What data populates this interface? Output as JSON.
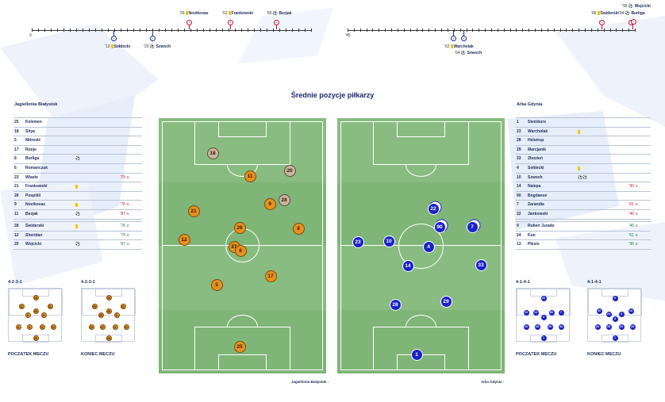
{
  "title": "Średnie pozycje piłkarzy",
  "timeline_home": {
    "start": "0",
    "top_events": [
      {
        "min": "'25",
        "name": "Novikovas",
        "icon": "yellow-card"
      },
      {
        "min": "'52",
        "name": "Frankowski",
        "icon": "yellow-card"
      },
      {
        "min": "'60",
        "name": "Bezjak",
        "icon": "ball"
      }
    ],
    "bottom_events": [
      {
        "min": "'13",
        "name": "Sołdecki",
        "icon": "yellow-card"
      },
      {
        "min": "'20",
        "name": "Szwoch",
        "icon": "ball"
      }
    ]
  },
  "timeline_away": {
    "start": "'45",
    "top_events": [
      {
        "min": "'86",
        "name": "Świderski",
        "icon": "yellow-card"
      },
      {
        "min": "'94",
        "name": "Burliga",
        "icon": "ball"
      },
      {
        "min": "'95",
        "name": "Wojcicki",
        "icon": "ball"
      }
    ],
    "bottom_events": [
      {
        "min": "'62",
        "name": "Warcholak",
        "icon": "yellow-card"
      },
      {
        "min": "'64",
        "name": "Szwoch",
        "icon": "ball"
      }
    ]
  },
  "home": {
    "name": "Jagiellonia Białystok",
    "players": [
      {
        "num": "25",
        "name": "Kelemen",
        "sym": "",
        "ex": ""
      },
      {
        "num": "18",
        "name": "Sitya",
        "sym": "",
        "ex": ""
      },
      {
        "num": "5",
        "name": "Mitrović",
        "sym": "",
        "ex": ""
      },
      {
        "num": "17",
        "name": "Runje",
        "sym": "",
        "ex": ""
      },
      {
        "num": "8",
        "name": "Burliga",
        "sym": "⚽",
        "ex": ""
      },
      {
        "num": "6",
        "name": "Romanczuk",
        "sym": "",
        "ex": ""
      },
      {
        "num": "23",
        "name": "Wlazło",
        "sym": "",
        "ex": "'79 ∨"
      },
      {
        "num": "21",
        "name": "Frankowski",
        "sym": "card",
        "ex": ""
      },
      {
        "num": "26",
        "name": "Pospíšil",
        "sym": "",
        "ex": ""
      },
      {
        "num": "9",
        "name": "Novikovas",
        "sym": "card",
        "ex": "'76 ∨"
      },
      {
        "num": "11",
        "name": "Bezjak",
        "sym": "⚽",
        "ex": "'87 ∨"
      }
    ],
    "subs": [
      {
        "num": "28",
        "name": "Świderski",
        "sym": "card",
        "ex": "'76 ∧"
      },
      {
        "num": "12",
        "name": "Sheridan",
        "sym": "",
        "ex": "'79 ∧"
      },
      {
        "num": "20",
        "name": "Wojcicki",
        "sym": "⚽",
        "ex": "'87 ∧"
      }
    ],
    "formation_start": "4-2-3-1",
    "formation_end": "4-2-3-1",
    "caption_start": "POCZĄTEK MECZU",
    "caption_end": "KONIEC MECZU",
    "pitch_caption": "Jagiellonia Białystok",
    "field_players": [
      "18",
      "11",
      "20",
      "28",
      "9",
      "21",
      "26",
      "8",
      "12",
      "27",
      "6",
      "17",
      "5",
      "25"
    ],
    "mini_start": [
      "15",
      "11",
      "21",
      "26",
      "9",
      "6",
      "8",
      "5",
      "17",
      "21",
      "25"
    ],
    "mini_end": [
      "15",
      "20",
      "21",
      "26",
      "26",
      "8",
      "12",
      "17",
      "5",
      "21",
      "25"
    ]
  },
  "away": {
    "name": "Arka Gdynia",
    "players": [
      {
        "num": "1",
        "name": "Steinbors",
        "sym": "",
        "ex": ""
      },
      {
        "num": "23",
        "name": "Warcholak",
        "sym": "card",
        "ex": ""
      },
      {
        "num": "28",
        "name": "Helstrup",
        "sym": "",
        "ex": ""
      },
      {
        "num": "29",
        "name": "Marcjanik",
        "sym": "",
        "ex": ""
      },
      {
        "num": "33",
        "name": "Zbozień",
        "sym": "",
        "ex": ""
      },
      {
        "num": "4",
        "name": "Sołdecki",
        "sym": "card",
        "ex": ""
      },
      {
        "num": "10",
        "name": "Szwoch",
        "sym": "⚽⚽",
        "ex": ""
      },
      {
        "num": "14",
        "name": "Nalepa",
        "sym": "",
        "ex": "'90 ∨"
      },
      {
        "num": "90",
        "name": "Bogdanov",
        "sym": "",
        "ex": ""
      },
      {
        "num": "7",
        "name": "Zarandia",
        "sym": "",
        "ex": "'61 ∨"
      },
      {
        "num": "22",
        "name": "Jankowski",
        "sym": "",
        "ex": "'46 ∨"
      }
    ],
    "subs": [
      {
        "num": "9",
        "name": "Ruben Jurado",
        "sym": "",
        "ex": "'46 ∧"
      },
      {
        "num": "24",
        "name": "Kun",
        "sym": "",
        "ex": "'61 ∧"
      },
      {
        "num": "13",
        "name": "Płesio",
        "sym": "",
        "ex": "'90 ∧"
      }
    ],
    "formation_start": "4-1-4-1",
    "formation_end": "4-1-4-1",
    "caption_start": "POCZĄTEK MECZU",
    "caption_end": "KONIEC MECZU",
    "pitch_caption": "Arka Gdynia",
    "field_players": [
      "22",
      "90",
      "7",
      "23",
      "10",
      "4",
      "14",
      "33",
      "28",
      "29",
      "1"
    ],
    "mini_start": [
      "22",
      "10",
      "14",
      "90",
      "7",
      "4",
      "23",
      "28",
      "29",
      "33",
      "1"
    ],
    "mini_end": [
      "9",
      "10",
      "13",
      "4",
      "24",
      "23",
      "28",
      "29",
      "33",
      "1",
      "4"
    ]
  },
  "colors": {
    "home": "#e8911e",
    "away": "#1a22c8",
    "pitch": "#7fb577",
    "yellow_card": "#f2c500"
  }
}
